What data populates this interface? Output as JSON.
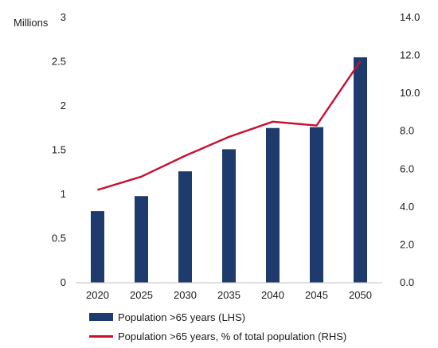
{
  "chart_data": {
    "type": "bar",
    "left_unit_label": "Millions",
    "categories": [
      "2020",
      "2025",
      "2030",
      "2035",
      "2040",
      "2045",
      "2050"
    ],
    "y_left": {
      "range": [
        0,
        3
      ],
      "ticks": [
        "0",
        "0.5",
        "1",
        "1.5",
        "2",
        "2.5",
        "3"
      ]
    },
    "y_right": {
      "range": [
        0,
        14
      ],
      "ticks": [
        "0.0",
        "2.0",
        "4.0",
        "6.0",
        "8.0",
        "10.0",
        "12.0",
        "14.0"
      ]
    },
    "series": [
      {
        "name": "Population >65 years (LHS)",
        "kind": "bar",
        "axis": "left",
        "color": "#1f3b6e",
        "values": [
          0.81,
          0.98,
          1.26,
          1.51,
          1.75,
          1.76,
          2.55
        ]
      },
      {
        "name": "Population >65 years, % of total population (RHS)",
        "kind": "line",
        "axis": "right",
        "color": "#c8102e",
        "values": [
          4.9,
          5.6,
          6.7,
          7.7,
          8.5,
          8.3,
          11.7
        ]
      }
    ],
    "grid": false,
    "legend_position": "bottom-left"
  }
}
